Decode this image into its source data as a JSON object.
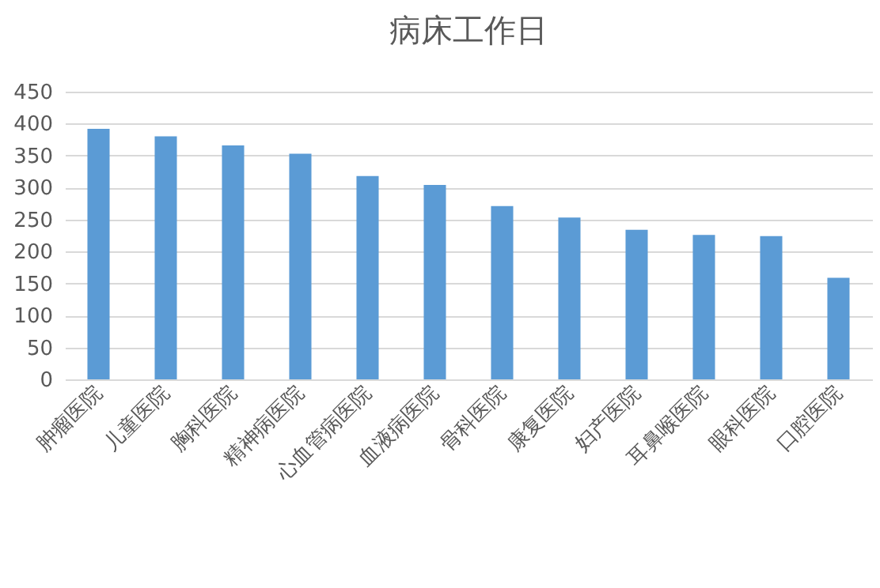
{
  "chart_data": {
    "type": "bar",
    "title": "病床工作日",
    "categories": [
      "肿瘤医院",
      "儿童医院",
      "胸科医院",
      "精神病医院",
      "心血管病医院",
      "血液病医院",
      "骨科医院",
      "康复医院",
      "妇产医院",
      "耳鼻喉医院",
      "眼科医院",
      "口腔医院"
    ],
    "values": [
      392,
      380,
      366,
      353,
      318,
      304,
      271,
      253,
      234,
      226,
      224,
      159
    ],
    "color": "#5b9bd5",
    "ylim": [
      0,
      450
    ],
    "yticks": [
      0,
      50,
      100,
      150,
      200,
      250,
      300,
      350,
      400,
      450
    ],
    "grid": "y"
  }
}
